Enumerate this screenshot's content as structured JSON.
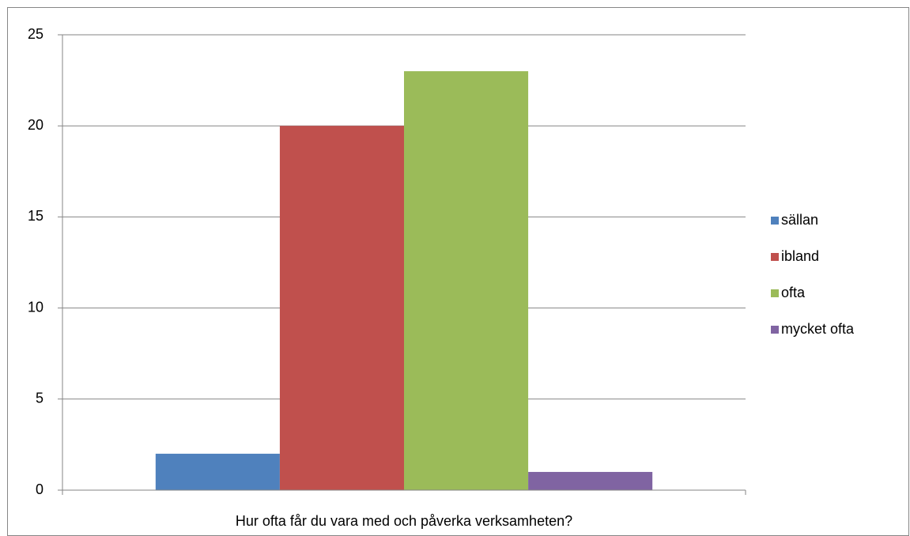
{
  "chart_data": {
    "type": "bar",
    "categories": [
      "Hur ofta får du vara med och påverka verksamheten?"
    ],
    "series": [
      {
        "name": "sällan",
        "color": "#4f81bd",
        "values": [
          2
        ]
      },
      {
        "name": "ibland",
        "color": "#c0504d",
        "values": [
          20
        ]
      },
      {
        "name": "ofta",
        "color": "#9bbb59",
        "values": [
          23
        ]
      },
      {
        "name": "mycket ofta",
        "color": "#8064a2",
        "values": [
          1
        ]
      }
    ],
    "ylim": [
      0,
      25
    ],
    "yticks": [
      0,
      5,
      10,
      15,
      20,
      25
    ],
    "grid": true,
    "legend": "right"
  }
}
